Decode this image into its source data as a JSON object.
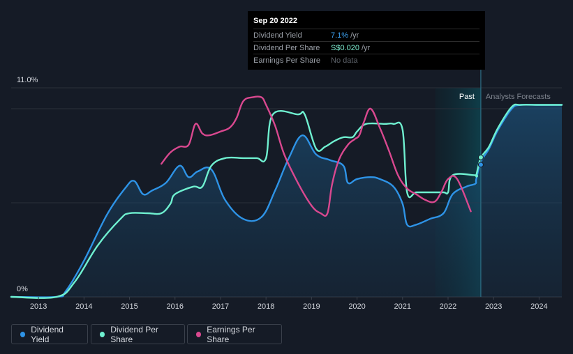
{
  "tooltip": {
    "date": "Sep 20 2022",
    "rows": [
      {
        "label": "Dividend Yield",
        "value": "7.1%",
        "unit": "/yr"
      },
      {
        "label": "Dividend Per Share",
        "value": "S$0.020",
        "unit": "/yr"
      },
      {
        "label": "Earnings Per Share",
        "value": "No data",
        "unit": ""
      }
    ]
  },
  "legend": [
    {
      "label": "Dividend Yield",
      "color": "#2e93e6"
    },
    {
      "label": "Dividend Per Share",
      "color": "#6ff0d0"
    },
    {
      "label": "Earnings Per Share",
      "color": "#d9488f"
    }
  ],
  "colors": {
    "yield": "#2e93e6",
    "dps": "#6ff0d0",
    "eps": "#d9488f",
    "background": "#151b26",
    "forecast_band": "#0e3a44"
  },
  "chart_data": {
    "type": "line",
    "title": "",
    "y_axis_labels": [
      "11.0%",
      "0%"
    ],
    "ylim": [
      0,
      11.0
    ],
    "xlim": [
      2012.4,
      2024.5
    ],
    "x_ticks": [
      2013,
      2014,
      2015,
      2016,
      2017,
      2018,
      2019,
      2020,
      2021,
      2022,
      2023,
      2024
    ],
    "x_tick_labels": [
      "2013",
      "2014",
      "2015",
      "2016",
      "2017",
      "2018",
      "2019",
      "2020",
      "2021",
      "2022",
      "2023",
      "2024"
    ],
    "region_labels": {
      "past": "Past",
      "forecast": "Analysts Forecasts"
    },
    "past_start": 2021.72,
    "forecast_start": 2022.72,
    "series": [
      {
        "name": "Dividend Yield",
        "key": "yield",
        "unit": "%",
        "filled": true,
        "x": [
          2012.4,
          2013.4,
          2013.6,
          2014.0,
          2014.5,
          2014.9,
          2015.1,
          2015.3,
          2015.5,
          2015.8,
          2016.1,
          2016.3,
          2016.5,
          2016.8,
          2017.1,
          2017.5,
          2017.9,
          2018.2,
          2018.5,
          2018.8,
          2019.1,
          2019.4,
          2019.7,
          2019.8,
          2020.0,
          2020.3,
          2020.5,
          2020.8,
          2021.0,
          2021.1,
          2021.3,
          2021.6,
          2021.9,
          2022.1,
          2022.4,
          2022.6,
          2022.62,
          2022.72,
          2022.9,
          2023.1,
          2023.4,
          2023.6,
          2024.0,
          2024.5
        ],
        "y": [
          0.0,
          0.0,
          0.3,
          1.9,
          4.3,
          5.7,
          6.1,
          5.4,
          5.6,
          6.0,
          6.9,
          6.3,
          6.6,
          6.7,
          5.1,
          4.1,
          4.2,
          5.6,
          7.3,
          8.5,
          7.5,
          7.2,
          6.9,
          6.0,
          6.2,
          6.3,
          6.2,
          5.8,
          4.9,
          3.8,
          3.8,
          4.1,
          4.4,
          5.4,
          5.8,
          5.95,
          6.2,
          7.1,
          7.8,
          8.8,
          9.9,
          10.1,
          10.1,
          10.1
        ]
      },
      {
        "name": "Dividend Per Share",
        "key": "dps",
        "unit": "%",
        "filled": false,
        "x": [
          2012.4,
          2013.4,
          2013.8,
          2014.3,
          2014.8,
          2015.0,
          2015.4,
          2015.7,
          2015.9,
          2016.0,
          2016.4,
          2016.6,
          2016.8,
          2017.1,
          2017.5,
          2017.8,
          2018.0,
          2018.15,
          2018.7,
          2018.85,
          2019.1,
          2019.3,
          2019.5,
          2019.7,
          2019.9,
          2020.0,
          2020.2,
          2020.6,
          2020.8,
          2021.0,
          2021.1,
          2021.3,
          2021.6,
          2021.9,
          2022.0,
          2022.1,
          2022.6,
          2022.62,
          2022.72,
          2022.9,
          2023.1,
          2023.4,
          2023.6,
          2024.0,
          2024.5
        ],
        "y": [
          0.0,
          0.0,
          0.8,
          2.7,
          4.1,
          4.4,
          4.4,
          4.4,
          4.9,
          5.4,
          5.8,
          5.8,
          6.9,
          7.3,
          7.3,
          7.3,
          7.3,
          9.6,
          9.6,
          9.6,
          7.8,
          7.9,
          8.2,
          8.4,
          8.4,
          8.7,
          9.1,
          9.1,
          9.1,
          8.8,
          5.5,
          5.5,
          5.5,
          5.5,
          5.5,
          6.4,
          6.4,
          6.4,
          7.3,
          7.9,
          8.9,
          10.0,
          10.1,
          10.1,
          10.1
        ]
      },
      {
        "name": "Earnings Per Share",
        "key": "eps",
        "unit": "%",
        "filled": false,
        "x": [
          2015.7,
          2015.9,
          2016.1,
          2016.3,
          2016.45,
          2016.6,
          2016.75,
          2017.0,
          2017.2,
          2017.35,
          2017.5,
          2017.7,
          2017.9,
          2018.0,
          2018.2,
          2018.4,
          2018.7,
          2019.0,
          2019.2,
          2019.35,
          2019.45,
          2019.6,
          2019.8,
          2019.95,
          2020.05,
          2020.15,
          2020.3,
          2020.5,
          2020.7,
          2020.9,
          2021.1,
          2021.3,
          2021.5,
          2021.7,
          2021.85,
          2022.0,
          2022.2,
          2022.5
        ],
        "y": [
          7.0,
          7.6,
          7.9,
          8.0,
          9.1,
          8.6,
          8.5,
          8.7,
          8.9,
          9.4,
          10.3,
          10.5,
          10.5,
          10.1,
          9.0,
          7.5,
          6.0,
          4.8,
          4.4,
          4.4,
          5.9,
          7.2,
          8.0,
          8.3,
          8.5,
          9.2,
          9.9,
          8.9,
          7.7,
          6.4,
          5.7,
          5.4,
          5.1,
          5.0,
          5.5,
          6.2,
          6.2,
          4.5
        ]
      }
    ]
  }
}
